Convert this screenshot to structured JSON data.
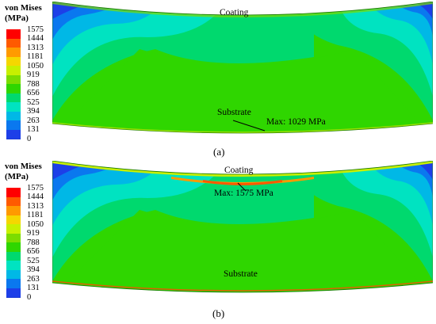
{
  "legend": {
    "title_line1": "von Mises",
    "title_line2": "(MPa)",
    "ticks": [
      "1575",
      "1444",
      "1313",
      "1181",
      "1050",
      "919",
      "788",
      "656",
      "525",
      "394",
      "263",
      "131",
      "0"
    ],
    "colors": [
      "#ff0000",
      "#ff5a00",
      "#ff9a00",
      "#f5d700",
      "#c8f000",
      "#7cdc00",
      "#2fd600",
      "#00d96e",
      "#00e3c1",
      "#00b8e6",
      "#0a78ef",
      "#1d3fe8",
      "#1a0ad8"
    ]
  },
  "panel_a": {
    "coating_label": "Coating",
    "substrate_label": "Substrate",
    "max_label": "Max: 1029 MPa",
    "caption": "(a)"
  },
  "panel_b": {
    "coating_label": "Coating",
    "substrate_label": "Substrate",
    "max_label": "Max: 1575 MPa",
    "caption": "(b)"
  }
}
